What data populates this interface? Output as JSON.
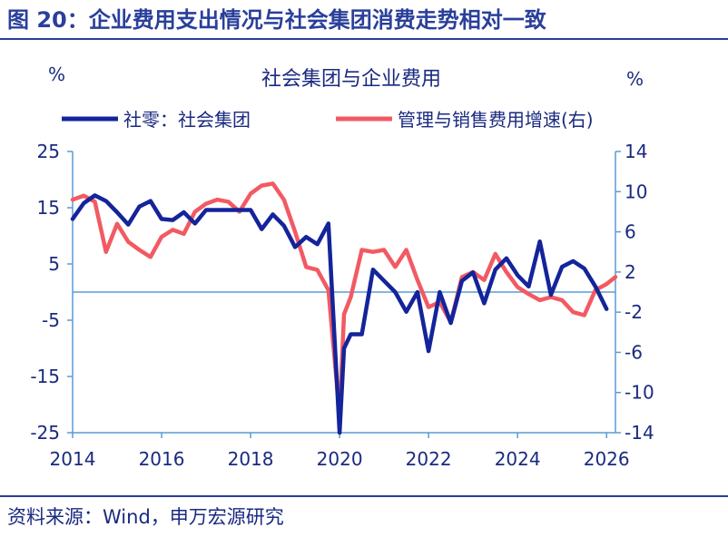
{
  "figure_title": "图 20：企业费用支出情况与社会集团消费走势相对一致",
  "source_note": "资料来源：Wind，申万宏源研究",
  "colors": {
    "title_blue": "#2a3f9a",
    "text_blue": "#1a2a80",
    "series_blue": "#14249a",
    "series_red": "#f25a63",
    "axis_line": "#5a9bd5"
  },
  "chart_data": {
    "type": "line",
    "title": "社会集团与企业费用",
    "ylabel_left": "%",
    "ylabel_right": "%",
    "xlim": [
      2014,
      2026.2
    ],
    "ylim_left": [
      -25,
      25
    ],
    "ylim_right": [
      -14,
      14
    ],
    "x_ticks": [
      2014,
      2016,
      2018,
      2020,
      2022,
      2024,
      2026
    ],
    "x_tick_labels": [
      "2014",
      "2016",
      "2018",
      "2020",
      "2022",
      "2024",
      "2026"
    ],
    "y_ticks_left": [
      25,
      15,
      5,
      -5,
      -15,
      -25
    ],
    "y_tick_labels_left": [
      "25",
      "15",
      "5",
      "-5",
      "-15",
      "-25"
    ],
    "y_ticks_right": [
      14,
      10,
      6,
      2,
      -2,
      -6,
      -10,
      -14
    ],
    "y_tick_labels_right": [
      "14",
      "10",
      "6",
      "2",
      "-2",
      "-6",
      "-10",
      "-14"
    ],
    "legend_position": "top",
    "series": [
      {
        "name": "社零：社会集团",
        "axis": "left",
        "color": "#14249a",
        "x": [
          2014.0,
          2014.25,
          2014.5,
          2014.75,
          2015.0,
          2015.25,
          2015.5,
          2015.75,
          2016.0,
          2016.25,
          2016.5,
          2016.75,
          2017.0,
          2017.25,
          2017.5,
          2017.75,
          2018.0,
          2018.25,
          2018.5,
          2018.75,
          2019.0,
          2019.25,
          2019.5,
          2019.75,
          2020.0,
          2020.1,
          2020.25,
          2020.5,
          2020.75,
          2021.0,
          2021.25,
          2021.5,
          2021.75,
          2022.0,
          2022.25,
          2022.5,
          2022.75,
          2023.0,
          2023.25,
          2023.5,
          2023.75,
          2024.0,
          2024.25,
          2024.5,
          2024.75,
          2025.0,
          2025.25,
          2025.5,
          2025.75,
          2026.0
        ],
        "y": [
          13,
          15.8,
          17.2,
          16.2,
          14.2,
          12,
          15.2,
          16.2,
          13,
          12.8,
          14.2,
          12.2,
          14.6,
          14.6,
          14.6,
          14.6,
          14.6,
          11.2,
          13.8,
          11.8,
          8,
          9.8,
          8.5,
          12.2,
          -25,
          -10,
          -7.5,
          -7.5,
          4,
          2,
          0,
          -3.5,
          0,
          -10.5,
          0,
          -5.5,
          2,
          3.5,
          -2,
          4,
          6,
          3,
          1,
          9,
          -0.5,
          4.5,
          5.5,
          4.2,
          1,
          -3
        ]
      },
      {
        "name": "管理与销售费用增速(右)",
        "axis": "right",
        "color": "#f25a63",
        "x": [
          2014.0,
          2014.25,
          2014.5,
          2014.75,
          2015.0,
          2015.25,
          2015.5,
          2015.75,
          2016.0,
          2016.25,
          2016.5,
          2016.75,
          2017.0,
          2017.25,
          2017.5,
          2017.75,
          2018.0,
          2018.25,
          2018.5,
          2018.75,
          2019.0,
          2019.25,
          2019.5,
          2019.75,
          2020.0,
          2020.1,
          2020.25,
          2020.5,
          2020.75,
          2021.0,
          2021.25,
          2021.5,
          2021.75,
          2022.0,
          2022.25,
          2022.5,
          2022.75,
          2023.0,
          2023.25,
          2023.5,
          2023.75,
          2024.0,
          2024.25,
          2024.5,
          2024.75,
          2025.0,
          2025.25,
          2025.5,
          2025.75,
          2026.0,
          2026.2
        ],
        "y": [
          9.2,
          9.6,
          9,
          4,
          6.8,
          5,
          4.2,
          3.5,
          5.5,
          6.2,
          5.8,
          8,
          8.8,
          9.2,
          9,
          8,
          9.8,
          10.6,
          10.8,
          9.2,
          6,
          2.5,
          2.2,
          0.2,
          -12.2,
          -2.2,
          -0.5,
          4.2,
          4,
          4.2,
          2.5,
          4.2,
          1.2,
          -1.5,
          -1,
          -3,
          1.5,
          2,
          1.2,
          3.8,
          2,
          0.5,
          -0.2,
          -0.8,
          -0.5,
          -0.8,
          -2,
          -2.3,
          0.2,
          0.8,
          1.5
        ]
      }
    ]
  }
}
